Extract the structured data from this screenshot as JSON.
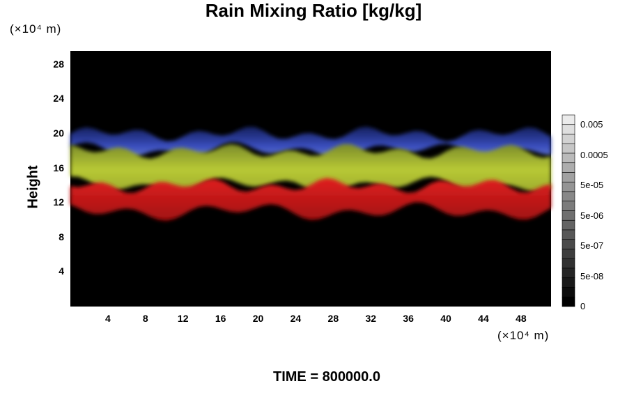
{
  "chart_data": {
    "type": "heatmap",
    "title": "Rain Mixing Ratio [kg/kg]",
    "ylabel": "Height",
    "x_unit": "(×10⁴ m)",
    "y_unit": "(×10⁴ m)",
    "footer": "TIME = 800000.0",
    "xlim": [
      0,
      51.2
    ],
    "ylim": [
      0,
      29.6
    ],
    "x_ticks": [
      "4",
      "8",
      "12",
      "16",
      "20",
      "24",
      "28",
      "32",
      "36",
      "40",
      "44",
      "48"
    ],
    "y_ticks": [
      "4",
      "8",
      "12",
      "16",
      "20",
      "24",
      "28"
    ],
    "colorbar": {
      "tick_labels": [
        "0.005",
        "0.0005",
        "5e-05",
        "5e-06",
        "5e-07",
        "5e-08",
        "0"
      ]
    },
    "layers": [
      {
        "name": "blue",
        "color": "#2f3fa8",
        "y_range": [
          18,
          20
        ]
      },
      {
        "name": "yellow-green",
        "color": "#b5c832",
        "y_range": [
          14,
          18
        ]
      },
      {
        "name": "red",
        "color": "#d81f1f",
        "y_range": [
          11,
          14
        ]
      }
    ],
    "background_color": "#000000"
  }
}
